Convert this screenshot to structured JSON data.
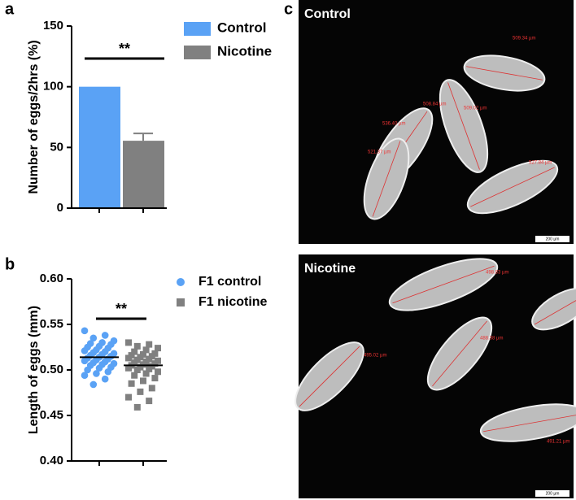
{
  "chart_data": [
    {
      "type": "bar",
      "panel_label": "a",
      "ylabel": "Number of eggs/2hrs (%)",
      "categories": [
        "Control",
        "Nicotine"
      ],
      "values": [
        100,
        55.5
      ],
      "errors": [
        0,
        6
      ],
      "colors": [
        "#5aa2f5",
        "#808080"
      ],
      "ylim": [
        0,
        150
      ],
      "yticks": [
        0,
        50,
        100,
        150
      ],
      "annotation": "**",
      "legend": "right"
    },
    {
      "type": "dot",
      "panel_label": "b",
      "ylabel": "Length of eggs (mm)",
      "ylim": [
        0.4,
        0.6
      ],
      "yticks": [
        {
          "value": 0.4,
          "label": "0.40"
        },
        0.45,
        {
          "value": 0.5,
          "label": "0.50"
        },
        0.55,
        {
          "value": 0.6,
          "label": "0.60"
        }
      ],
      "annotation": "**",
      "legend": "right",
      "series": [
        {
          "name": "F1 control",
          "color": "#5aa2f5",
          "marker": "circle",
          "mean": 0.514,
          "values": [
            0.543,
            0.538,
            0.535,
            0.532,
            0.53,
            0.529,
            0.528,
            0.526,
            0.525,
            0.524,
            0.522,
            0.521,
            0.52,
            0.519,
            0.518,
            0.517,
            0.516,
            0.515,
            0.514,
            0.513,
            0.512,
            0.511,
            0.51,
            0.509,
            0.508,
            0.507,
            0.506,
            0.505,
            0.503,
            0.502,
            0.5,
            0.498,
            0.496,
            0.494,
            0.49,
            0.484
          ]
        },
        {
          "name": "F1 nicotine",
          "color": "#808080",
          "marker": "square",
          "mean": 0.505,
          "values": [
            0.53,
            0.528,
            0.526,
            0.524,
            0.522,
            0.52,
            0.518,
            0.517,
            0.516,
            0.515,
            0.514,
            0.513,
            0.512,
            0.511,
            0.51,
            0.509,
            0.508,
            0.507,
            0.506,
            0.505,
            0.504,
            0.503,
            0.502,
            0.501,
            0.5,
            0.498,
            0.496,
            0.494,
            0.491,
            0.488,
            0.485,
            0.48,
            0.476,
            0.47,
            0.466,
            0.459
          ]
        }
      ]
    }
  ],
  "images": {
    "panel_label": "c",
    "panels": [
      {
        "title": "Control",
        "scale": "200 µm",
        "measurements": [
          "509.34 µm",
          "508.84 µm",
          "509.02 µm",
          "536.40 µm",
          "521.37 µm",
          "527.84 µm"
        ]
      },
      {
        "title": "Nicotine",
        "scale": "200 µm",
        "measurements": [
          "498.83 µm",
          "488.38 µm",
          "495.02 µm",
          "491.21 µm"
        ]
      }
    ]
  }
}
